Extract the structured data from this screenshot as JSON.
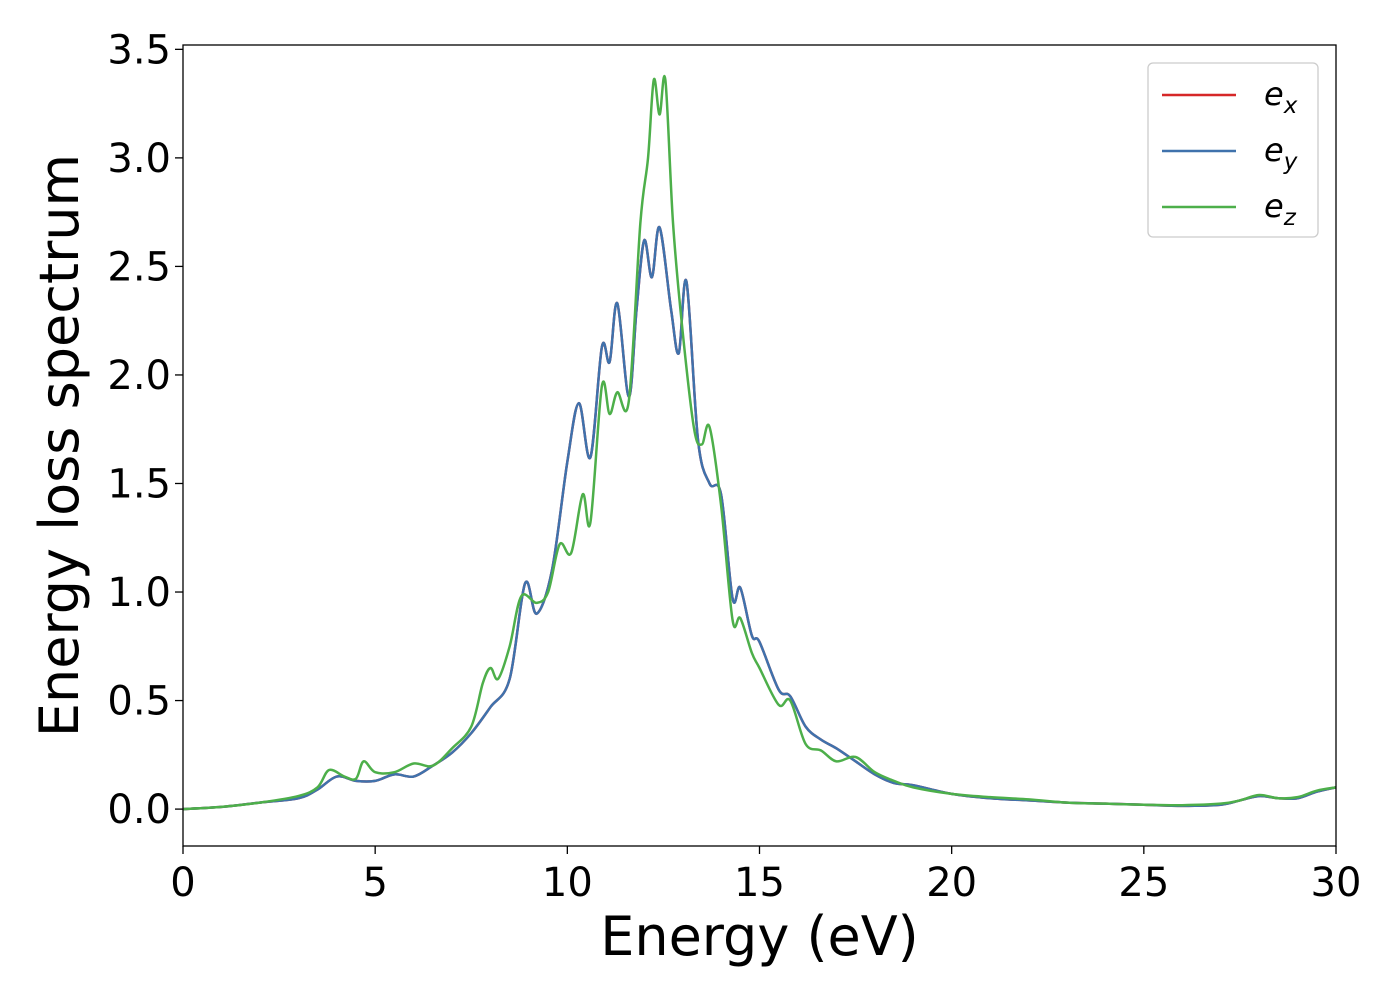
{
  "chart_data": {
    "type": "line",
    "title": "",
    "xlabel": "Energy (eV)",
    "ylabel": "Energy loss spectrum",
    "xlim": [
      0,
      30
    ],
    "ylim": [
      -0.17,
      3.52
    ],
    "xticks": [
      "0",
      "5",
      "10",
      "15",
      "20",
      "25",
      "30"
    ],
    "yticks": [
      "0.0",
      "0.5",
      "1.0",
      "1.5",
      "2.0",
      "2.5",
      "3.0",
      "3.5"
    ],
    "grid": false,
    "legend_position": "top-right",
    "series": [
      {
        "name": "e_x",
        "legend_base": "e",
        "legend_sub": "x",
        "color": "#d62728",
        "points": [
          [
            0,
            0.0
          ],
          [
            1,
            0.01
          ],
          [
            2,
            0.03
          ],
          [
            3,
            0.05
          ],
          [
            3.5,
            0.09
          ],
          [
            4,
            0.15
          ],
          [
            4.5,
            0.13
          ],
          [
            5,
            0.13
          ],
          [
            5.5,
            0.16
          ],
          [
            6,
            0.15
          ],
          [
            6.5,
            0.2
          ],
          [
            7,
            0.26
          ],
          [
            7.5,
            0.35
          ],
          [
            8,
            0.47
          ],
          [
            8.5,
            0.6
          ],
          [
            8.9,
            1.04
          ],
          [
            9.2,
            0.9
          ],
          [
            9.6,
            1.1
          ],
          [
            10,
            1.6
          ],
          [
            10.3,
            1.87
          ],
          [
            10.6,
            1.62
          ],
          [
            10.9,
            2.13
          ],
          [
            11.1,
            2.06
          ],
          [
            11.3,
            2.33
          ],
          [
            11.6,
            1.9
          ],
          [
            11.8,
            2.3
          ],
          [
            12.0,
            2.62
          ],
          [
            12.2,
            2.45
          ],
          [
            12.4,
            2.68
          ],
          [
            12.7,
            2.3
          ],
          [
            12.9,
            2.1
          ],
          [
            13.1,
            2.43
          ],
          [
            13.4,
            1.7
          ],
          [
            13.7,
            1.5
          ],
          [
            14.0,
            1.45
          ],
          [
            14.3,
            0.97
          ],
          [
            14.5,
            1.02
          ],
          [
            14.8,
            0.8
          ],
          [
            15.0,
            0.77
          ],
          [
            15.5,
            0.55
          ],
          [
            15.8,
            0.52
          ],
          [
            16.2,
            0.38
          ],
          [
            16.6,
            0.32
          ],
          [
            17,
            0.28
          ],
          [
            17.5,
            0.22
          ],
          [
            18,
            0.16
          ],
          [
            18.5,
            0.12
          ],
          [
            19,
            0.11
          ],
          [
            20,
            0.07
          ],
          [
            21,
            0.05
          ],
          [
            22,
            0.04
          ],
          [
            23,
            0.03
          ],
          [
            24,
            0.025
          ],
          [
            25,
            0.02
          ],
          [
            26,
            0.015
          ],
          [
            27,
            0.02
          ],
          [
            27.5,
            0.04
          ],
          [
            28,
            0.06
          ],
          [
            28.5,
            0.05
          ],
          [
            29,
            0.05
          ],
          [
            29.5,
            0.08
          ],
          [
            30,
            0.1
          ]
        ]
      },
      {
        "name": "e_y",
        "legend_base": "e",
        "legend_sub": "y",
        "color": "#3f72ac",
        "points": [
          [
            0,
            0.0
          ],
          [
            1,
            0.01
          ],
          [
            2,
            0.03
          ],
          [
            3,
            0.05
          ],
          [
            3.5,
            0.09
          ],
          [
            4,
            0.15
          ],
          [
            4.5,
            0.13
          ],
          [
            5,
            0.13
          ],
          [
            5.5,
            0.16
          ],
          [
            6,
            0.15
          ],
          [
            6.5,
            0.2
          ],
          [
            7,
            0.26
          ],
          [
            7.5,
            0.35
          ],
          [
            8,
            0.47
          ],
          [
            8.5,
            0.6
          ],
          [
            8.9,
            1.04
          ],
          [
            9.2,
            0.9
          ],
          [
            9.6,
            1.1
          ],
          [
            10,
            1.6
          ],
          [
            10.3,
            1.87
          ],
          [
            10.6,
            1.62
          ],
          [
            10.9,
            2.13
          ],
          [
            11.1,
            2.06
          ],
          [
            11.3,
            2.33
          ],
          [
            11.6,
            1.9
          ],
          [
            11.8,
            2.3
          ],
          [
            12.0,
            2.62
          ],
          [
            12.2,
            2.45
          ],
          [
            12.4,
            2.68
          ],
          [
            12.7,
            2.3
          ],
          [
            12.9,
            2.1
          ],
          [
            13.1,
            2.43
          ],
          [
            13.4,
            1.7
          ],
          [
            13.7,
            1.5
          ],
          [
            14.0,
            1.45
          ],
          [
            14.3,
            0.97
          ],
          [
            14.5,
            1.02
          ],
          [
            14.8,
            0.8
          ],
          [
            15.0,
            0.77
          ],
          [
            15.5,
            0.55
          ],
          [
            15.8,
            0.52
          ],
          [
            16.2,
            0.38
          ],
          [
            16.6,
            0.32
          ],
          [
            17,
            0.28
          ],
          [
            17.5,
            0.22
          ],
          [
            18,
            0.16
          ],
          [
            18.5,
            0.12
          ],
          [
            19,
            0.11
          ],
          [
            20,
            0.07
          ],
          [
            21,
            0.05
          ],
          [
            22,
            0.04
          ],
          [
            23,
            0.03
          ],
          [
            24,
            0.025
          ],
          [
            25,
            0.02
          ],
          [
            26,
            0.015
          ],
          [
            27,
            0.02
          ],
          [
            27.5,
            0.04
          ],
          [
            28,
            0.06
          ],
          [
            28.5,
            0.05
          ],
          [
            29,
            0.05
          ],
          [
            29.5,
            0.08
          ],
          [
            30,
            0.1
          ]
        ]
      },
      {
        "name": "e_z",
        "legend_base": "e",
        "legend_sub": "z",
        "color": "#4daf4a",
        "points": [
          [
            0,
            0.0
          ],
          [
            1,
            0.01
          ],
          [
            2,
            0.03
          ],
          [
            3,
            0.06
          ],
          [
            3.5,
            0.1
          ],
          [
            3.8,
            0.18
          ],
          [
            4.2,
            0.15
          ],
          [
            4.5,
            0.14
          ],
          [
            4.7,
            0.22
          ],
          [
            5,
            0.17
          ],
          [
            5.5,
            0.17
          ],
          [
            6,
            0.21
          ],
          [
            6.5,
            0.2
          ],
          [
            7,
            0.28
          ],
          [
            7.5,
            0.38
          ],
          [
            7.8,
            0.58
          ],
          [
            8,
            0.65
          ],
          [
            8.2,
            0.6
          ],
          [
            8.5,
            0.75
          ],
          [
            8.8,
            0.98
          ],
          [
            9.2,
            0.95
          ],
          [
            9.5,
            1.0
          ],
          [
            9.8,
            1.22
          ],
          [
            10.1,
            1.18
          ],
          [
            10.4,
            1.45
          ],
          [
            10.6,
            1.32
          ],
          [
            10.9,
            1.95
          ],
          [
            11.1,
            1.82
          ],
          [
            11.3,
            1.92
          ],
          [
            11.6,
            1.88
          ],
          [
            11.9,
            2.7
          ],
          [
            12.1,
            3.0
          ],
          [
            12.25,
            3.36
          ],
          [
            12.4,
            3.2
          ],
          [
            12.55,
            3.36
          ],
          [
            12.75,
            2.7
          ],
          [
            13.0,
            2.2
          ],
          [
            13.3,
            1.75
          ],
          [
            13.5,
            1.68
          ],
          [
            13.7,
            1.76
          ],
          [
            14.0,
            1.4
          ],
          [
            14.3,
            0.87
          ],
          [
            14.5,
            0.88
          ],
          [
            14.8,
            0.72
          ],
          [
            15.0,
            0.65
          ],
          [
            15.5,
            0.48
          ],
          [
            15.8,
            0.5
          ],
          [
            16.2,
            0.3
          ],
          [
            16.6,
            0.27
          ],
          [
            17,
            0.22
          ],
          [
            17.5,
            0.24
          ],
          [
            18,
            0.17
          ],
          [
            18.5,
            0.13
          ],
          [
            19,
            0.1
          ],
          [
            20,
            0.07
          ],
          [
            21,
            0.055
          ],
          [
            22,
            0.045
          ],
          [
            23,
            0.03
          ],
          [
            24,
            0.025
          ],
          [
            25,
            0.02
          ],
          [
            26,
            0.018
          ],
          [
            27,
            0.025
          ],
          [
            27.5,
            0.04
          ],
          [
            28,
            0.065
          ],
          [
            28.5,
            0.05
          ],
          [
            29,
            0.055
          ],
          [
            29.5,
            0.085
          ],
          [
            30,
            0.1
          ]
        ]
      }
    ]
  }
}
